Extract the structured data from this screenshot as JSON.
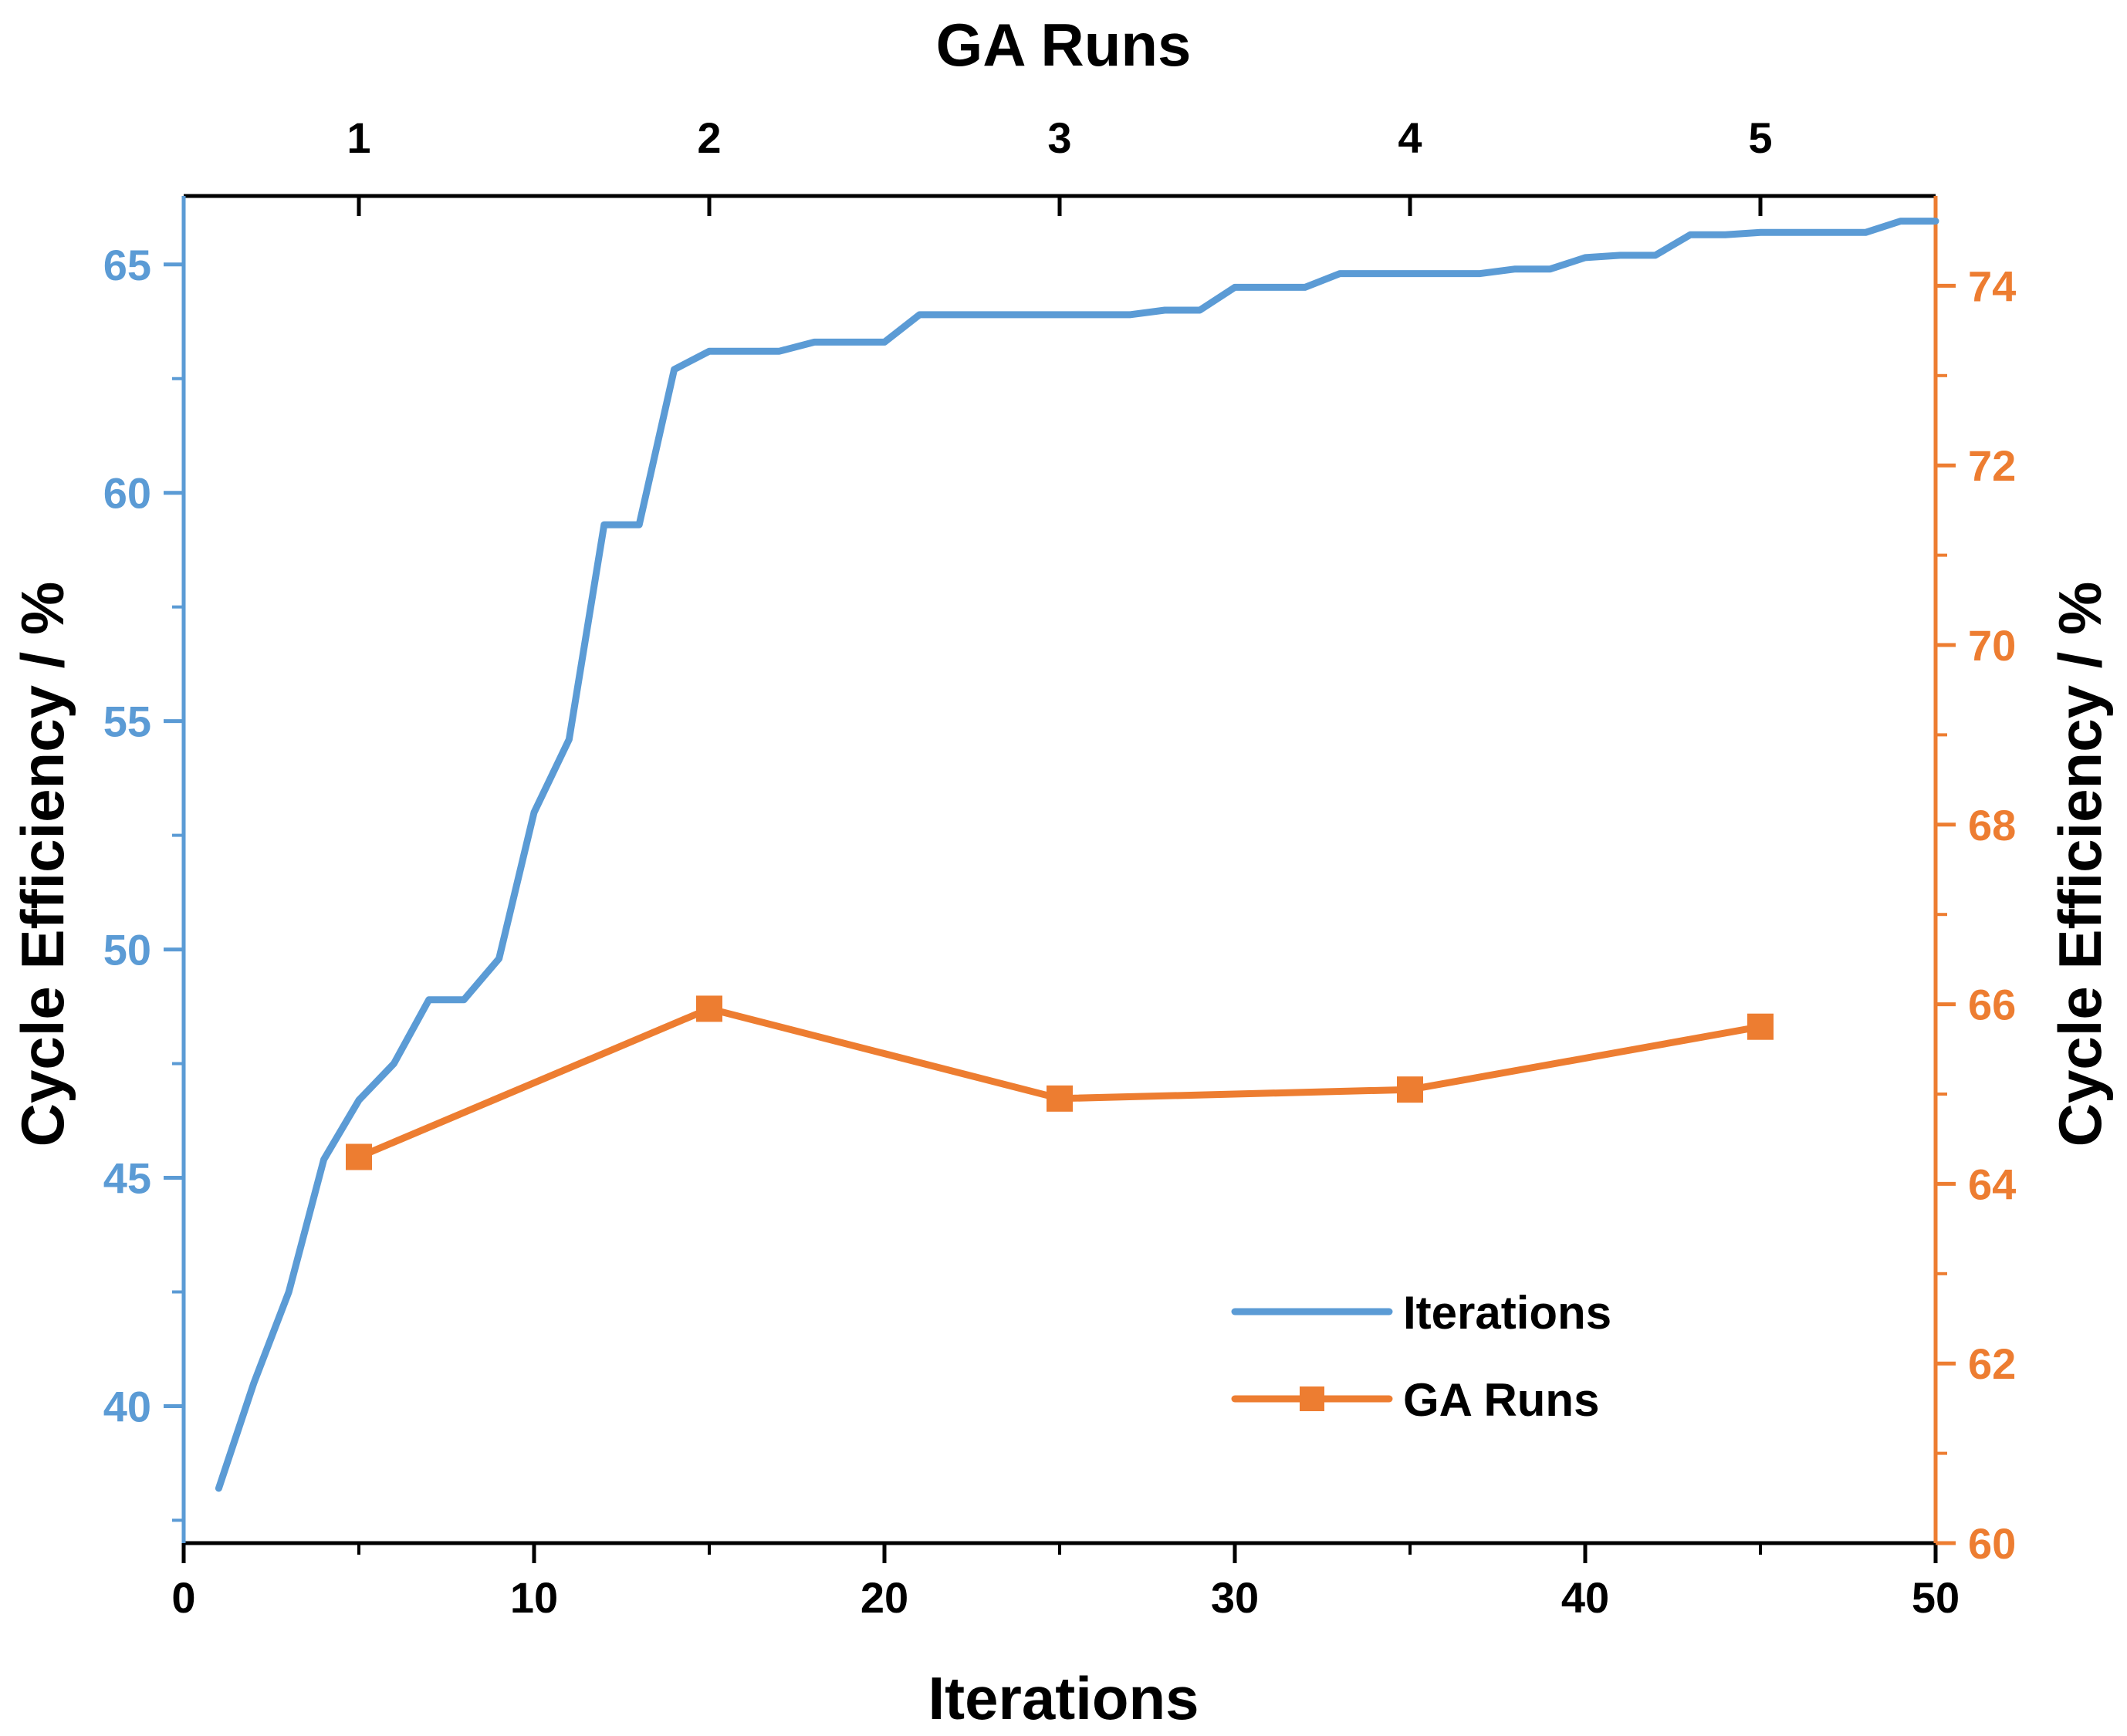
{
  "chart_data": {
    "type": "line",
    "axes": {
      "x_bottom": {
        "label": "Iterations",
        "range": [
          0,
          50
        ],
        "ticks": [
          0,
          10,
          20,
          30,
          40,
          50
        ]
      },
      "x_top": {
        "label": "GA Runs",
        "range": [
          0.5,
          5.5
        ],
        "ticks": [
          1,
          2,
          3,
          4,
          5
        ]
      },
      "y_left": {
        "label": "Cycle Efficiency / %",
        "range": [
          37,
          66.5
        ],
        "ticks": [
          40,
          45,
          50,
          55,
          60,
          65
        ],
        "color": "#5B9BD5"
      },
      "y_right": {
        "label": "Cycle Efficiency / %",
        "range": [
          60,
          75
        ],
        "ticks": [
          60,
          62,
          64,
          66,
          68,
          70,
          72,
          74
        ],
        "color": "#ED7D31"
      }
    },
    "series": [
      {
        "name": "Iterations",
        "axis": "left",
        "color": "#5B9BD5",
        "marker": "none",
        "x": [
          1,
          2,
          3,
          4,
          5,
          6,
          7,
          8,
          9,
          10,
          11,
          12,
          13,
          14,
          15,
          16,
          17,
          18,
          19,
          20,
          21,
          22,
          23,
          24,
          25,
          26,
          27,
          28,
          29,
          30,
          31,
          32,
          33,
          34,
          35,
          36,
          37,
          38,
          39,
          40,
          41,
          42,
          43,
          44,
          45,
          46,
          47,
          48,
          49,
          50
        ],
        "values": [
          38.2,
          40.5,
          42.5,
          45.4,
          46.7,
          47.5,
          48.9,
          48.9,
          49.8,
          53.0,
          54.6,
          59.3,
          59.3,
          62.7,
          63.1,
          63.1,
          63.1,
          63.3,
          63.3,
          63.3,
          63.9,
          63.9,
          63.9,
          63.9,
          63.9,
          63.9,
          63.9,
          64.0,
          64.0,
          64.5,
          64.5,
          64.5,
          64.8,
          64.8,
          64.8,
          64.8,
          64.8,
          64.9,
          64.9,
          65.15,
          65.2,
          65.2,
          65.65,
          65.65,
          65.7,
          65.7,
          65.7,
          65.7,
          65.95,
          65.95
        ]
      },
      {
        "name": "GA Runs",
        "axis": "right",
        "x_axis": "top",
        "color": "#ED7D31",
        "marker": "square",
        "x": [
          1,
          2,
          3,
          4,
          5
        ],
        "values": [
          64.3,
          65.95,
          64.95,
          65.05,
          65.75
        ]
      }
    ],
    "legend": {
      "placement": "bottom-right",
      "entries": [
        "Iterations",
        "GA Runs"
      ]
    },
    "grid": false
  }
}
